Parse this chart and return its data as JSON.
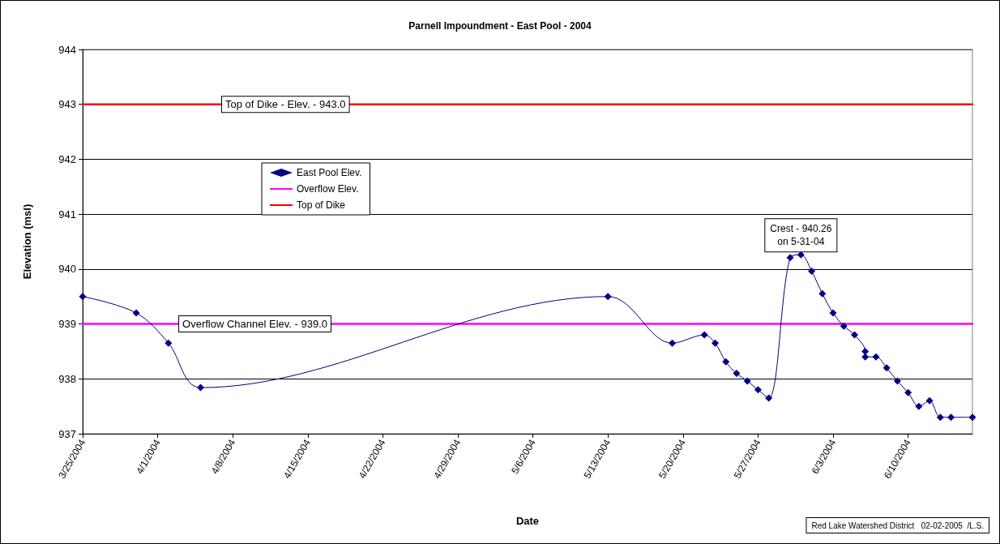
{
  "chart_data": {
    "type": "line",
    "title": "Parnell Impoundment - East Pool - 2004",
    "xlabel": "Date",
    "ylabel": "Elevation (msl)",
    "xlim": [
      "2004-03-25",
      "2004-06-16"
    ],
    "xticks": [
      {
        "value": "2004-03-25",
        "label": "3/25/2004"
      },
      {
        "value": "2004-04-01",
        "label": "4/1/2004"
      },
      {
        "value": "2004-04-08",
        "label": "4/8/2004"
      },
      {
        "value": "2004-04-15",
        "label": "4/15/2004"
      },
      {
        "value": "2004-04-22",
        "label": "4/22/2004"
      },
      {
        "value": "2004-04-29",
        "label": "4/29/2004"
      },
      {
        "value": "2004-05-06",
        "label": "5/6/2004"
      },
      {
        "value": "2004-05-13",
        "label": "5/13/2004"
      },
      {
        "value": "2004-05-20",
        "label": "5/20/2004"
      },
      {
        "value": "2004-05-27",
        "label": "5/27/2004"
      },
      {
        "value": "2004-06-03",
        "label": "6/3/2004"
      },
      {
        "value": "2004-06-10",
        "label": "6/10/2004"
      }
    ],
    "ylim": [
      937,
      944
    ],
    "yticks": [
      937,
      938,
      939,
      940,
      941,
      942,
      943,
      944
    ],
    "grid": "y",
    "legend": "top left",
    "series": [
      {
        "name": "East Pool Elev.",
        "color": "#000080",
        "marker": "diamond",
        "x": [
          "2004-03-25",
          "2004-03-30",
          "2004-04-02",
          "2004-04-05",
          "2004-05-13",
          "2004-05-19",
          "2004-05-22",
          "2004-05-23",
          "2004-05-24",
          "2004-05-25",
          "2004-05-26",
          "2004-05-27",
          "2004-05-28",
          "2004-05-30",
          "2004-05-31",
          "2004-06-01",
          "2004-06-02",
          "2004-06-03",
          "2004-06-04",
          "2004-06-05",
          "2004-06-06",
          "2004-06-06",
          "2004-06-07",
          "2004-06-08",
          "2004-06-09",
          "2004-06-10",
          "2004-06-11",
          "2004-06-12",
          "2004-06-13",
          "2004-06-14",
          "2004-06-16"
        ],
        "values": [
          939.5,
          939.2,
          938.65,
          937.84,
          939.5,
          938.65,
          938.8,
          938.65,
          938.31,
          938.1,
          937.96,
          937.8,
          937.65,
          940.21,
          940.26,
          939.96,
          939.55,
          939.2,
          938.96,
          938.8,
          938.5,
          938.4,
          938.4,
          938.2,
          937.96,
          937.75,
          937.5,
          937.6,
          937.3,
          937.3,
          937.3
        ]
      },
      {
        "name": "Overflow Elev.",
        "color": "#ff00ff",
        "marker": "none",
        "x": [
          "2004-03-25",
          "2004-06-16"
        ],
        "values": [
          939,
          939
        ]
      },
      {
        "name": "Top of Dike",
        "color": "#ff0000",
        "marker": "none",
        "x": [
          "2004-03-25",
          "2004-06-16"
        ],
        "values": [
          943,
          943
        ]
      }
    ],
    "annotations": [
      {
        "text": "Top of Dike - Elev. - 943.0",
        "x": "2004-04-07",
        "y": 943
      },
      {
        "text": "Overflow Channel Elev. - 939.0",
        "x": "2004-04-03",
        "y": 939
      },
      {
        "text": "Crest - 940.26\non 5-31-04",
        "x": "2004-05-31",
        "y": 940.26
      },
      "Red Lake Watershed District   02-02-2005  /L.S."
    ]
  }
}
